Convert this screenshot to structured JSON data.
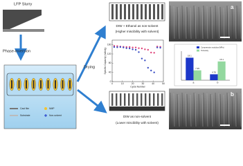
{
  "slurry_label": "LFP Slurry",
  "process_label": "Phase-inversion",
  "drying_label": "Drying",
  "legend": [
    "Cast film",
    "Substrate",
    "NMP",
    "Non-solvent"
  ],
  "top_condition": {
    "title": "DIW + Ethanol as non-solvent",
    "subtitle": "(Higher miscibility with solvent)"
  },
  "bottom_condition": {
    "title": "DIW as non-solvent",
    "subtitle": "(Lower miscibility with solvent)"
  },
  "sem_labels": [
    "a",
    "b"
  ],
  "chart_data": [
    {
      "type": "scatter",
      "xlabel": "Cycle Number",
      "ylabel": "Specific Capacity (mAh/g)",
      "x": [
        2,
        5,
        8,
        11,
        14,
        17,
        20,
        23,
        26,
        29,
        32,
        35,
        38,
        41,
        44,
        47
      ],
      "xlim": [
        0,
        50
      ],
      "xticks": [
        0,
        10,
        20,
        30,
        40,
        50
      ],
      "ylim": [
        0,
        180
      ],
      "yticks": [
        0,
        40,
        80,
        120,
        160
      ],
      "series": [
        {
          "color": "#e0457b",
          "values": [
            155,
            154,
            152,
            151,
            150,
            150,
            148,
            148,
            145,
            144,
            140,
            138,
            126,
            125,
            152,
            151
          ]
        },
        {
          "color": "#3b4fc4",
          "values": [
            150,
            149,
            150,
            148,
            145,
            144,
            140,
            138,
            128,
            100,
            92,
            60,
            48,
            40,
            148,
            147
          ]
        }
      ]
    },
    {
      "type": "bar",
      "categories": [
        "a",
        "b"
      ],
      "ylim": [
        0,
        20
      ],
      "series": [
        {
          "name": "Compression modulus (MPa)",
          "color": "#1c37c9",
          "values": [
            18.1,
            4.78
          ]
        },
        {
          "name": "Tortuosity",
          "color": "#93d89f",
          "values": [
            7.95,
            15.1
          ]
        }
      ]
    }
  ]
}
